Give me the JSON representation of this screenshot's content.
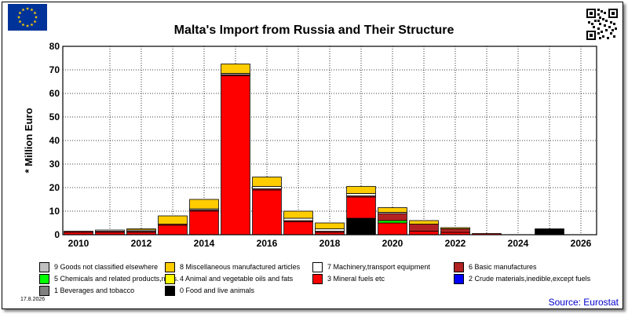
{
  "title": "Malta's Import from Russia and Their Structure",
  "date": "17.8.2026",
  "source": "Source: Eurostat",
  "chart_data": {
    "type": "bar",
    "stacked": true,
    "title": "Malta's Import from Russia and Their Structure",
    "ylabel": "* Million Euro",
    "xlabel": "",
    "ylim": [
      0,
      80
    ],
    "yticks": [
      0,
      10,
      20,
      30,
      40,
      50,
      60,
      70,
      80
    ],
    "xlim": [
      2009.5,
      2026.5
    ],
    "xticks": [
      2010,
      2012,
      2014,
      2016,
      2018,
      2020,
      2022,
      2024,
      2026
    ],
    "grid": true,
    "legend_position": "bottom",
    "categories": [
      2010,
      2011,
      2012,
      2013,
      2014,
      2015,
      2016,
      2017,
      2018,
      2019,
      2020,
      2021,
      2022,
      2023,
      2024,
      2025
    ],
    "series": [
      {
        "name": "0 Food and live animals",
        "color": "#000000",
        "values": [
          0,
          0,
          0,
          0,
          0,
          0,
          0,
          0,
          0,
          7.0,
          0,
          0,
          0,
          0,
          0,
          2.5
        ]
      },
      {
        "name": "1 Beverages and tobacco",
        "color": "#808080",
        "values": [
          0,
          0,
          0,
          0,
          0,
          0,
          0,
          0,
          0,
          0,
          0,
          0,
          0,
          0,
          0,
          0
        ]
      },
      {
        "name": "2 Crude materials,inedible,except fuels",
        "color": "#0000ff",
        "values": [
          0,
          0,
          0,
          0,
          0,
          0,
          0,
          0,
          0,
          0,
          0,
          0,
          0,
          0,
          0,
          0
        ]
      },
      {
        "name": "3 Mineral fuels etc",
        "color": "#ff0000",
        "values": [
          1.0,
          1.0,
          1.0,
          4.0,
          10.0,
          67.5,
          19.0,
          5.5,
          1.0,
          9.0,
          5.0,
          1.5,
          1.0,
          0.5,
          0,
          0
        ]
      },
      {
        "name": "4 Animal and vegetable oils and fats",
        "color": "#ffff00",
        "values": [
          0,
          0,
          0,
          0,
          0,
          0,
          0,
          0,
          0,
          0,
          0,
          0,
          0,
          0,
          0,
          0
        ]
      },
      {
        "name": "5 Chemicals and related products,n.e.s.",
        "color": "#00ff00",
        "values": [
          0,
          0,
          0,
          0,
          0,
          0,
          0,
          0,
          0,
          0,
          1.0,
          0,
          0,
          0,
          0,
          0
        ]
      },
      {
        "name": "6 Basic manufactures",
        "color": "#b22222",
        "values": [
          0.5,
          0.5,
          0.5,
          0.5,
          0.5,
          0.5,
          0.5,
          0.5,
          0.5,
          0.5,
          3.0,
          3.0,
          1.5,
          0,
          0,
          0
        ]
      },
      {
        "name": "7 Machinery,transport equipment",
        "color": "#ffffff",
        "values": [
          0,
          0.5,
          0.5,
          0,
          0.5,
          0.5,
          1.0,
          1.0,
          1.0,
          1.0,
          0.5,
          0,
          0,
          0,
          0,
          0
        ]
      },
      {
        "name": "8 Miscellaneous manufactured articles",
        "color": "#ffcc00",
        "values": [
          0,
          0,
          0.5,
          3.5,
          4.0,
          4.0,
          4.0,
          3.0,
          2.5,
          3.0,
          2.0,
          1.5,
          0.5,
          0,
          0,
          0
        ]
      },
      {
        "name": "9 Goods not classified elsewhere",
        "color": "#c0c0c0",
        "values": [
          0,
          0,
          0,
          0,
          0,
          0,
          0,
          0,
          0,
          0,
          0,
          0,
          0,
          0,
          0,
          0
        ]
      }
    ]
  },
  "legend": [
    {
      "label": "9 Goods not classified elsewhere",
      "color": "#c0c0c0"
    },
    {
      "label": "8 Miscellaneous manufactured articles",
      "color": "#ffcc00"
    },
    {
      "label": "7 Machinery,transport equipment",
      "color": "#ffffff"
    },
    {
      "label": "6 Basic manufactures",
      "color": "#b22222"
    },
    {
      "label": "5 Chemicals and related products,n.e.s.",
      "color": "#00ff00"
    },
    {
      "label": "4 Animal and vegetable oils and fats",
      "color": "#ffff00"
    },
    {
      "label": "3 Mineral fuels etc",
      "color": "#ff0000"
    },
    {
      "label": "2 Crude materials,inedible,except fuels",
      "color": "#0000ff"
    },
    {
      "label": "1 Beverages and tobacco",
      "color": "#808080"
    },
    {
      "label": "0 Food and live animals",
      "color": "#000000"
    }
  ],
  "icons": {
    "flag": "eu-flag-icon",
    "qr": "qr-code-icon"
  }
}
